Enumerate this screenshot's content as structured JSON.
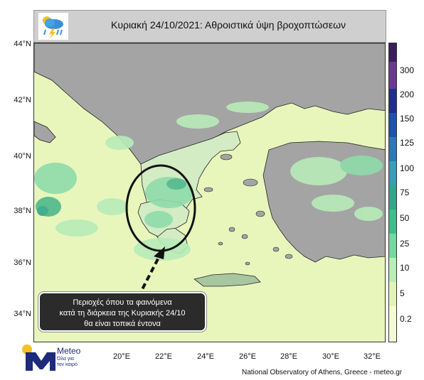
{
  "title": "Κυριακή 24/10/2021: Αθροιστικά  ύψη βροχοπτώσεων",
  "lat_labels": [
    "44°N",
    "42°N",
    "40°N",
    "38°N",
    "36°N",
    "34°N"
  ],
  "lon_labels": [
    "20°E",
    "22°E",
    "24°E",
    "26°E",
    "28°E",
    "30°E",
    "32°E"
  ],
  "colorbar": {
    "labels": [
      "300",
      "200",
      "150",
      "125",
      "100",
      "75",
      "50",
      "25",
      "10",
      "5",
      "0.2"
    ],
    "colors": [
      "#3b1e5a",
      "#6a3b8c",
      "#1f2f8a",
      "#1f52a8",
      "#2f78b6",
      "#3c9cb6",
      "#2fa88a",
      "#3cbf8a",
      "#74d8a0",
      "#b8ecb8",
      "#e3f3b8",
      "#f4f9d8"
    ]
  },
  "callout": {
    "line1": "Περιοχές όπου τα φαινόμενα",
    "line2": "κατά τη διάρκεια της Κυριακής 24/10",
    "line3": "θα είναι τοπικά έντονα"
  },
  "logo": {
    "word": "Meteo",
    "sub1": "Όλα για",
    "sub2": "τον καιρό"
  },
  "credit": "National Observatory of Athens, Greece - meteo.gr",
  "colors": {
    "sea": "#e8f6bc",
    "land": "#a4a4a4",
    "greece": "#d3ecc4",
    "rain_light": "#b8ecb8",
    "rain_mid": "#8fdcaa",
    "rain_heavy": "#4fb88c"
  }
}
